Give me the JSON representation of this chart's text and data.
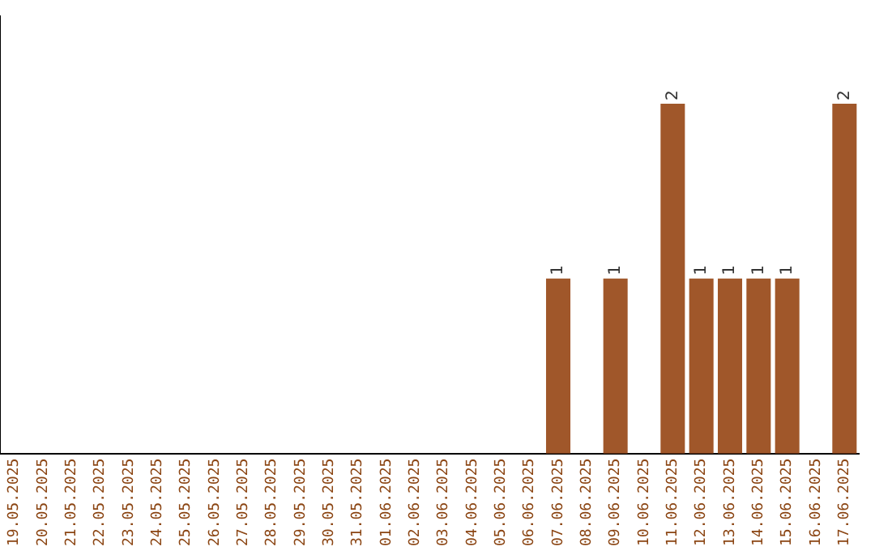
{
  "chart_data": {
    "type": "bar",
    "categories": [
      "19.05.2025",
      "20.05.2025",
      "21.05.2025",
      "22.05.2025",
      "23.05.2025",
      "24.05.2025",
      "25.05.2025",
      "26.05.2025",
      "27.05.2025",
      "28.05.2025",
      "29.05.2025",
      "30.05.2025",
      "31.05.2025",
      "01.06.2025",
      "02.06.2025",
      "03.06.2025",
      "04.06.2025",
      "05.06.2025",
      "06.06.2025",
      "07.06.2025",
      "08.06.2025",
      "09.06.2025",
      "10.06.2025",
      "11.06.2025",
      "12.06.2025",
      "13.06.2025",
      "14.06.2025",
      "15.06.2025",
      "16.06.2025",
      "17.06.2025"
    ],
    "values": [
      null,
      null,
      null,
      null,
      null,
      null,
      null,
      null,
      null,
      null,
      null,
      null,
      null,
      null,
      null,
      null,
      null,
      null,
      null,
      1,
      null,
      1,
      null,
      2,
      1,
      1,
      1,
      1,
      null,
      2
    ],
    "data_labels": true,
    "color": "#a0572a",
    "tick_labels": "x",
    "grid": false,
    "legend": false
  }
}
